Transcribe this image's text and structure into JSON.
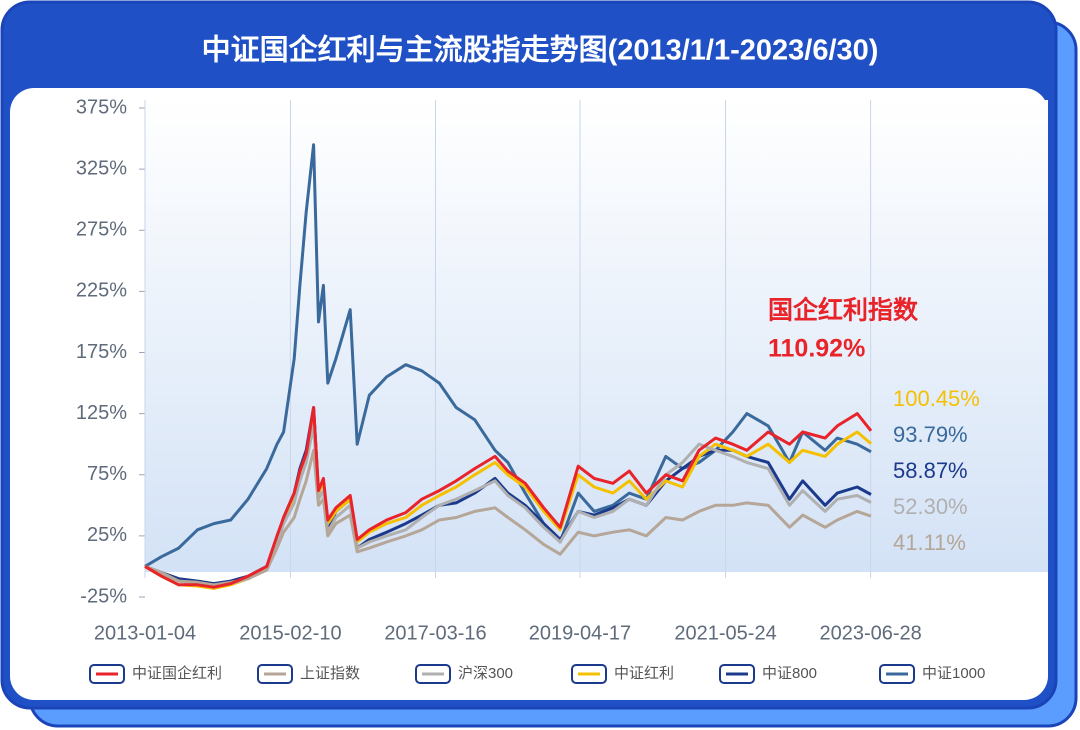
{
  "chart_data": {
    "type": "line",
    "title": "中证国企红利与主流股指走势图(2013/1/1-2023/6/30)",
    "annotation": "国企红利指数",
    "x": [
      "2013-01-04",
      "2013-04-01",
      "2013-07-01",
      "2013-10-08",
      "2014-01-02",
      "2014-04-01",
      "2014-07-01",
      "2014-10-08",
      "2014-12-01",
      "2015-01-05",
      "2015-03-02",
      "2015-04-01",
      "2015-05-04",
      "2015-06-12",
      "2015-07-08",
      "2015-08-03",
      "2015-08-26",
      "2015-10-08",
      "2015-12-22",
      "2016-01-28",
      "2016-04-01",
      "2016-07-01",
      "2016-10-10",
      "2017-01-03",
      "2017-04-05",
      "2017-07-03",
      "2017-10-09",
      "2018-01-24",
      "2018-04-02",
      "2018-07-02",
      "2018-10-08",
      "2019-01-03",
      "2019-04-08",
      "2019-07-01",
      "2019-10-08",
      "2020-01-02",
      "2020-04-01",
      "2020-07-13",
      "2020-10-09",
      "2021-01-04",
      "2021-04-01",
      "2021-07-01",
      "2021-09-13",
      "2022-01-04",
      "2022-04-26",
      "2022-07-05",
      "2022-10-31",
      "2023-01-03",
      "2023-04-18",
      "2023-06-30"
    ],
    "xlim": [
      "2013-01-04",
      "2023-06-30"
    ],
    "xticks": [
      "2013-01-04",
      "2015-02-10",
      "2017-03-16",
      "2019-04-17",
      "2021-05-24",
      "2023-06-28"
    ],
    "ylim": [
      -25,
      375
    ],
    "yticks": [
      {
        "value": -25,
        "label": "-25%"
      },
      {
        "value": 25,
        "label": "25%"
      },
      {
        "value": 75,
        "label": "75%"
      },
      {
        "value": 125,
        "label": "125%"
      },
      {
        "value": 175,
        "label": "175%"
      },
      {
        "value": 225,
        "label": "225%"
      },
      {
        "value": 275,
        "label": "275%"
      },
      {
        "value": 325,
        "label": "325%"
      },
      {
        "value": 375,
        "label": "375%"
      }
    ],
    "grid": "x",
    "legend": "bottom",
    "series": [
      {
        "name": "中证国企红利",
        "color": "#e8232a",
        "end_label": "110.92%",
        "values": [
          0,
          -8,
          -15,
          -15,
          -17,
          -14,
          -8,
          0,
          25,
          40,
          60,
          78,
          92,
          130,
          62,
          72,
          38,
          48,
          58,
          22,
          30,
          38,
          44,
          55,
          62,
          70,
          80,
          90,
          78,
          68,
          48,
          32,
          82,
          72,
          68,
          78,
          60,
          75,
          70,
          95,
          105,
          100,
          95,
          110,
          100,
          110,
          105,
          115,
          125,
          110.92
        ]
      },
      {
        "name": "上证指数",
        "color": "#b5a697",
        "end_label": "41.11%",
        "values": [
          0,
          -5,
          -12,
          -13,
          -15,
          -13,
          -10,
          -3,
          15,
          28,
          40,
          55,
          70,
          95,
          50,
          55,
          25,
          35,
          42,
          12,
          15,
          20,
          25,
          30,
          38,
          40,
          45,
          48,
          40,
          30,
          18,
          10,
          28,
          25,
          28,
          30,
          25,
          40,
          38,
          45,
          50,
          50,
          52,
          50,
          32,
          42,
          32,
          38,
          45,
          41.11
        ]
      },
      {
        "name": "沪深300",
        "color": "#b0b0b0",
        "end_label": "52.30%",
        "values": [
          0,
          -6,
          -12,
          -14,
          -16,
          -14,
          -10,
          -2,
          18,
          35,
          52,
          70,
          85,
          115,
          55,
          62,
          28,
          40,
          50,
          15,
          20,
          25,
          30,
          40,
          50,
          55,
          62,
          70,
          58,
          48,
          32,
          20,
          45,
          40,
          45,
          55,
          50,
          75,
          85,
          100,
          95,
          90,
          85,
          80,
          50,
          62,
          45,
          55,
          58,
          52.3
        ]
      },
      {
        "name": "中证红利",
        "color": "#f5c000",
        "end_label": "100.45%",
        "values": [
          0,
          -8,
          -15,
          -16,
          -18,
          -15,
          -10,
          -2,
          20,
          35,
          55,
          75,
          90,
          125,
          60,
          70,
          35,
          45,
          55,
          20,
          28,
          35,
          40,
          50,
          58,
          65,
          75,
          85,
          75,
          65,
          45,
          30,
          75,
          65,
          60,
          70,
          55,
          70,
          65,
          90,
          100,
          95,
          90,
          100,
          85,
          95,
          90,
          100,
          110,
          100.45
        ]
      },
      {
        "name": "中证800",
        "color": "#1c3a8c",
        "end_label": "58.87%",
        "values": [
          0,
          -5,
          -10,
          -12,
          -14,
          -12,
          -8,
          0,
          20,
          40,
          60,
          80,
          95,
          130,
          60,
          70,
          30,
          45,
          55,
          15,
          22,
          28,
          35,
          42,
          50,
          52,
          60,
          72,
          60,
          50,
          35,
          22,
          45,
          42,
          48,
          55,
          50,
          70,
          80,
          90,
          95,
          95,
          90,
          85,
          55,
          70,
          50,
          60,
          65,
          58.87
        ]
      },
      {
        "name": "中证1000",
        "color": "#3a6a9c",
        "end_label": "93.79%",
        "values": [
          0,
          8,
          15,
          30,
          35,
          38,
          55,
          80,
          100,
          110,
          170,
          230,
          290,
          345,
          200,
          230,
          150,
          170,
          210,
          100,
          140,
          155,
          165,
          160,
          150,
          130,
          120,
          95,
          85,
          60,
          35,
          20,
          60,
          45,
          50,
          60,
          55,
          90,
          80,
          85,
          95,
          110,
          125,
          115,
          85,
          110,
          95,
          105,
          100,
          93.79
        ]
      }
    ]
  }
}
